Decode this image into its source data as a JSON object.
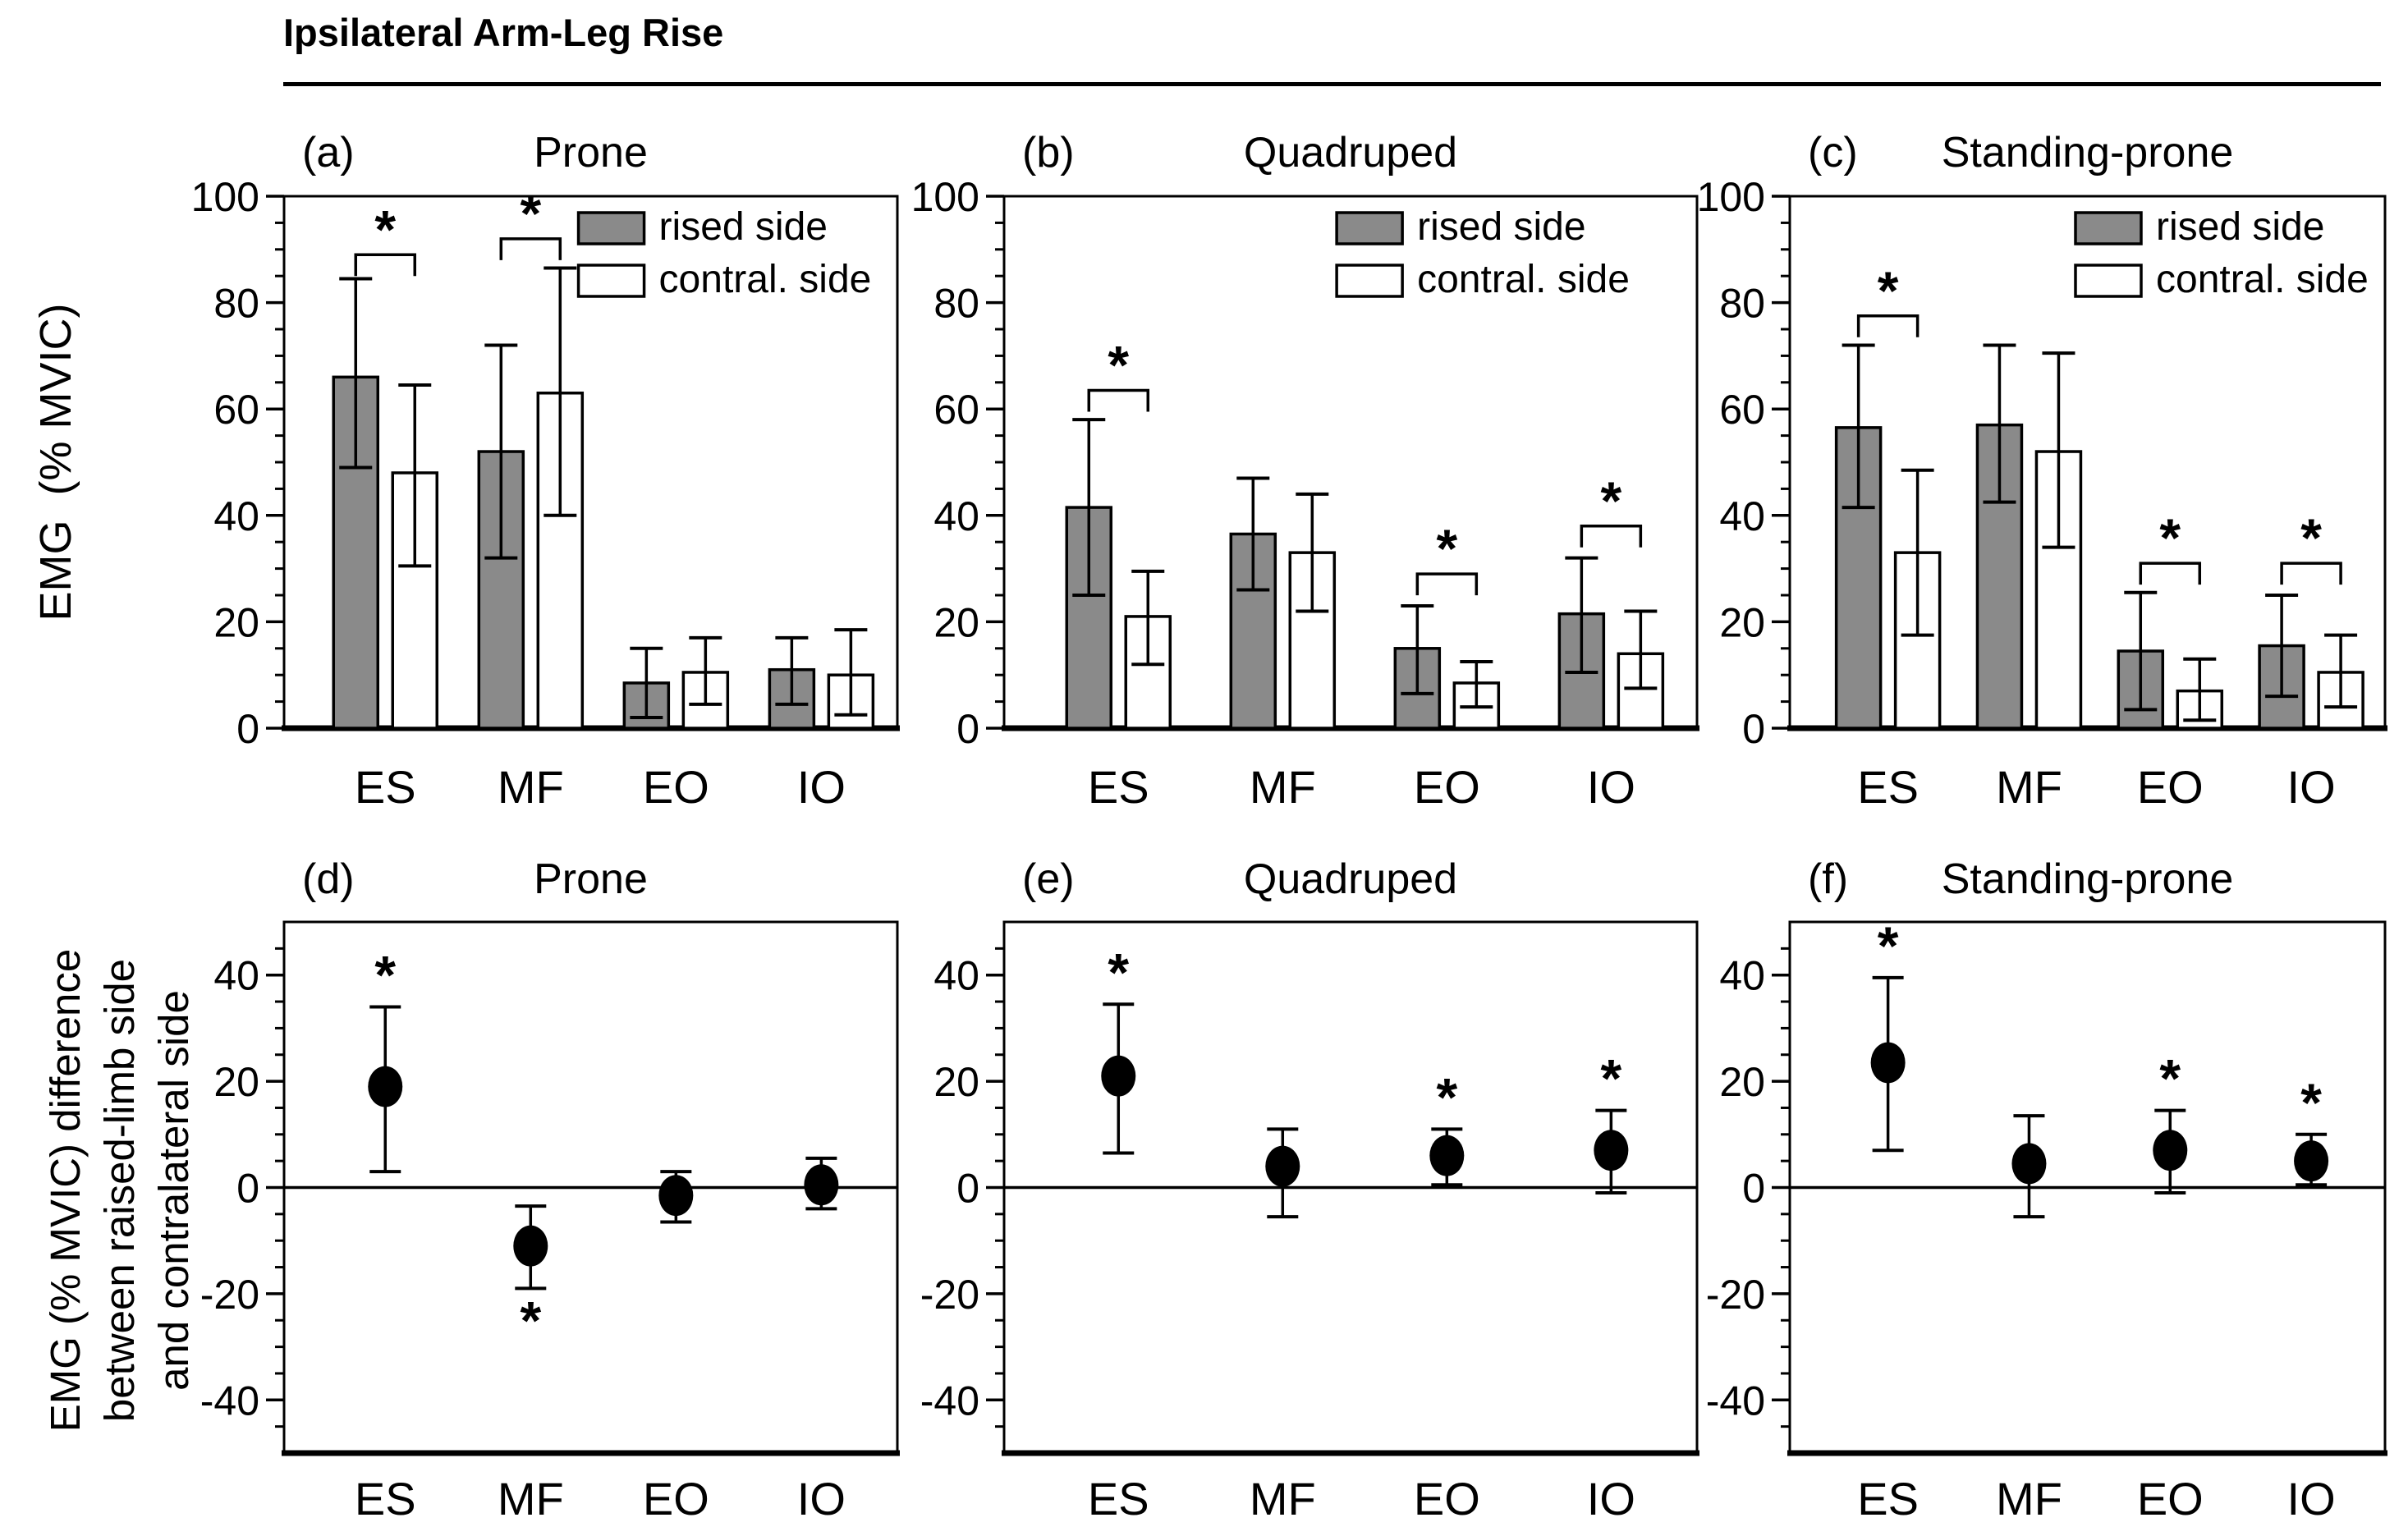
{
  "header": {
    "title": "Ipsilateral Arm-Leg Rise"
  },
  "axes": {
    "top_ylabel": "EMG  (% MVIC)",
    "bottom_ylabel_line1": "EMG (% MVIC) difference",
    "bottom_ylabel_line2": "between raised-limb side",
    "bottom_ylabel_line3": "and contralateral side"
  },
  "colors": {
    "raised_bar": "#8a8a8a",
    "contral_bar": "#ffffff",
    "ink": "#000000"
  },
  "legend": {
    "items": [
      "rised side",
      "contral. side"
    ]
  },
  "chart_data": [
    {
      "id": "a",
      "row": "top",
      "letter": "(a)",
      "title": "Prone",
      "type": "bar",
      "ylim": [
        0,
        100
      ],
      "yticks_major": [
        0,
        20,
        40,
        60,
        80,
        100
      ],
      "ytick_minor_step": 5,
      "categories": [
        "ES",
        "MF",
        "EO",
        "IO"
      ],
      "series": [
        {
          "name": "rised side",
          "fill": "#8a8a8a",
          "values": [
            66,
            52,
            8.5,
            11
          ],
          "err_low": [
            49,
            32,
            2,
            4.5
          ],
          "err_high": [
            84.5,
            72,
            15,
            17
          ]
        },
        {
          "name": "contral. side",
          "fill": "#ffffff",
          "values": [
            48,
            63,
            10.5,
            10
          ],
          "err_low": [
            30.5,
            40,
            4.5,
            2.5
          ],
          "err_high": [
            64.5,
            86.5,
            17,
            18.5
          ]
        }
      ],
      "significance_brackets": [
        {
          "category": "ES",
          "y": 89,
          "symbol": "*"
        },
        {
          "category": "MF",
          "y": 92,
          "symbol": "*"
        }
      ],
      "show_legend": true
    },
    {
      "id": "b",
      "row": "top",
      "letter": "(b)",
      "title": "Quadruped",
      "type": "bar",
      "ylim": [
        0,
        100
      ],
      "yticks_major": [
        0,
        20,
        40,
        60,
        80,
        100
      ],
      "ytick_minor_step": 5,
      "categories": [
        "ES",
        "MF",
        "EO",
        "IO"
      ],
      "series": [
        {
          "name": "rised side",
          "fill": "#8a8a8a",
          "values": [
            41.5,
            36.5,
            15,
            21.5
          ],
          "err_low": [
            25,
            26,
            6.5,
            10.5
          ],
          "err_high": [
            58,
            47,
            23,
            32
          ]
        },
        {
          "name": "contral. side",
          "fill": "#ffffff",
          "values": [
            21,
            33,
            8.5,
            14
          ],
          "err_low": [
            12,
            22,
            4,
            7.5
          ],
          "err_high": [
            29.5,
            44,
            12.5,
            22
          ]
        }
      ],
      "significance_brackets": [
        {
          "category": "ES",
          "y": 63.5,
          "symbol": "*"
        },
        {
          "category": "EO",
          "y": 29,
          "symbol": "*"
        },
        {
          "category": "IO",
          "y": 38,
          "symbol": "*"
        }
      ],
      "show_legend": true
    },
    {
      "id": "c",
      "row": "top",
      "letter": "(c)",
      "title": "Standing-prone",
      "type": "bar",
      "ylim": [
        0,
        100
      ],
      "yticks_major": [
        0,
        20,
        40,
        60,
        80,
        100
      ],
      "ytick_minor_step": 5,
      "categories": [
        "ES",
        "MF",
        "EO",
        "IO"
      ],
      "series": [
        {
          "name": "rised side",
          "fill": "#8a8a8a",
          "values": [
            56.5,
            57,
            14.5,
            15.5
          ],
          "err_low": [
            41.5,
            42.5,
            3.5,
            6
          ],
          "err_high": [
            72,
            72,
            25.5,
            25
          ]
        },
        {
          "name": "contral. side",
          "fill": "#ffffff",
          "values": [
            33,
            52,
            7,
            10.5
          ],
          "err_low": [
            17.5,
            34,
            1.5,
            4
          ],
          "err_high": [
            48.5,
            70.5,
            13,
            17.5
          ]
        }
      ],
      "significance_brackets": [
        {
          "category": "ES",
          "y": 77.5,
          "symbol": "*"
        },
        {
          "category": "EO",
          "y": 31,
          "symbol": "*"
        },
        {
          "category": "IO",
          "y": 31,
          "symbol": "*"
        }
      ],
      "show_legend": true
    },
    {
      "id": "d",
      "row": "bottom",
      "letter": "(d)",
      "title": "Prone",
      "type": "scatter",
      "ylim": [
        -50,
        50
      ],
      "yticks_major": [
        40,
        20,
        0,
        -20,
        -40
      ],
      "ytick_minor_step": 5,
      "zero_line": true,
      "categories": [
        "ES",
        "MF",
        "EO",
        "IO"
      ],
      "values": [
        19,
        -11,
        -1.5,
        0.5
      ],
      "err_low": [
        3,
        -19,
        -6.5,
        -4
      ],
      "err_high": [
        34,
        -3.5,
        3,
        5.5
      ],
      "significance_marks": [
        {
          "category": "ES",
          "position": "above",
          "symbol": "*"
        },
        {
          "category": "MF",
          "position": "below",
          "symbol": "*"
        }
      ]
    },
    {
      "id": "e",
      "row": "bottom",
      "letter": "(e)",
      "title": "Quadruped",
      "type": "scatter",
      "ylim": [
        -50,
        50
      ],
      "yticks_major": [
        40,
        20,
        0,
        -20,
        -40
      ],
      "ytick_minor_step": 5,
      "zero_line": true,
      "categories": [
        "ES",
        "MF",
        "EO",
        "IO"
      ],
      "values": [
        21,
        4,
        6,
        7
      ],
      "err_low": [
        6.5,
        -5.5,
        0.5,
        -1
      ],
      "err_high": [
        34.5,
        11,
        11,
        14.5
      ],
      "significance_marks": [
        {
          "category": "ES",
          "position": "above",
          "symbol": "*"
        },
        {
          "category": "EO",
          "position": "above",
          "symbol": "*"
        },
        {
          "category": "IO",
          "position": "above",
          "symbol": "*"
        }
      ]
    },
    {
      "id": "f",
      "row": "bottom",
      "letter": "(f)",
      "title": "Standing-prone",
      "type": "scatter",
      "ylim": [
        -50,
        50
      ],
      "yticks_major": [
        40,
        20,
        0,
        -20,
        -40
      ],
      "ytick_minor_step": 5,
      "zero_line": true,
      "categories": [
        "ES",
        "MF",
        "EO",
        "IO"
      ],
      "values": [
        23.5,
        4.5,
        7,
        5
      ],
      "err_low": [
        7,
        -5.5,
        -1,
        0.5
      ],
      "err_high": [
        39.5,
        13.5,
        14.5,
        10
      ],
      "significance_marks": [
        {
          "category": "ES",
          "position": "above",
          "symbol": "*"
        },
        {
          "category": "EO",
          "position": "above",
          "symbol": "*"
        },
        {
          "category": "IO",
          "position": "above",
          "symbol": "*"
        }
      ]
    }
  ]
}
